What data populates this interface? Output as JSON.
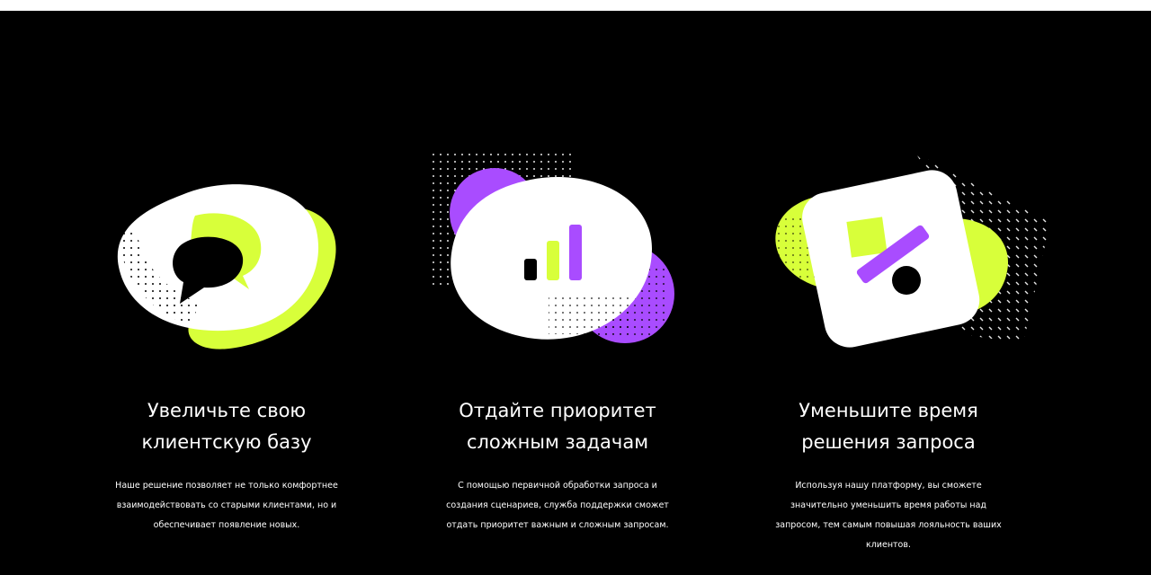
{
  "colors": {
    "background": "#000000",
    "accent_lime": "#D8FF3A",
    "accent_purple": "#A94CFF",
    "white": "#FFFFFF"
  },
  "features": [
    {
      "icon": "speech-bubbles-icon",
      "title": "Увеличьте свою клиентскую базу",
      "text": "Наше решение позволяет не только комфортнее взаимодействовать со старыми клиентами, но и обеспечивает появление новых."
    },
    {
      "icon": "bar-chart-icon",
      "title": "Отдайте приоритет сложным задачам",
      "text": "С помощью первичной обработки запроса и создания сценариев, служба поддержки сможет отдать приоритет важным и сложным запросам."
    },
    {
      "icon": "percent-icon",
      "title": "Уменьшите время решения запроса",
      "text": "Используя нашу платформу, вы сможете значительно уменьшить время работы над запросом, тем самым повышая лояльность ваших клиентов."
    }
  ]
}
